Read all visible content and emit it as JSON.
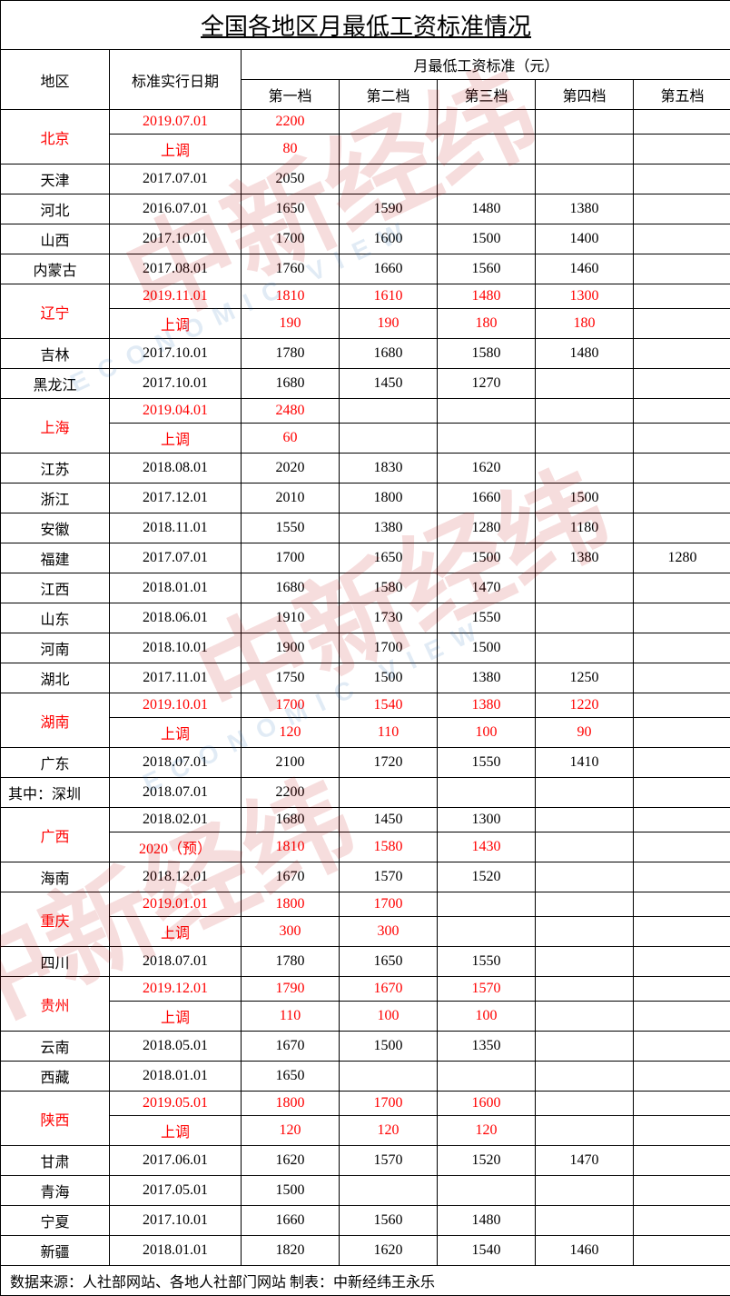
{
  "title": "全国各地区月最低工资标准情况",
  "headers": {
    "region": "地区",
    "date": "标准实行日期",
    "group": "月最低工资标准（元）",
    "tiers": [
      "第一档",
      "第二档",
      "第三档",
      "第四档",
      "第五档"
    ]
  },
  "footer": "数据来源：人社部网站、各地人社部门网站 制表：中新经纬王永乐",
  "colors": {
    "highlight": "#ff0000",
    "border": "#000000",
    "text": "#000000"
  },
  "rows": [
    {
      "region": "北京",
      "rowspan": 2,
      "red": true,
      "lines": [
        {
          "date": "2019.07.01",
          "tiers": [
            "2200",
            "",
            "",
            "",
            ""
          ],
          "red": true
        },
        {
          "date": "上调",
          "tiers": [
            "80",
            "",
            "",
            "",
            ""
          ],
          "red": true
        }
      ]
    },
    {
      "region": "天津",
      "lines": [
        {
          "date": "2017.07.01",
          "tiers": [
            "2050",
            "",
            "",
            "",
            ""
          ]
        }
      ]
    },
    {
      "region": "河北",
      "lines": [
        {
          "date": "2016.07.01",
          "tiers": [
            "1650",
            "1590",
            "1480",
            "1380",
            ""
          ]
        }
      ]
    },
    {
      "region": "山西",
      "lines": [
        {
          "date": "2017.10.01",
          "tiers": [
            "1700",
            "1600",
            "1500",
            "1400",
            ""
          ]
        }
      ]
    },
    {
      "region": "内蒙古",
      "lines": [
        {
          "date": "2017.08.01",
          "tiers": [
            "1760",
            "1660",
            "1560",
            "1460",
            ""
          ]
        }
      ]
    },
    {
      "region": "辽宁",
      "rowspan": 2,
      "red": true,
      "lines": [
        {
          "date": "2019.11.01",
          "tiers": [
            "1810",
            "1610",
            "1480",
            "1300",
            ""
          ],
          "red": true
        },
        {
          "date": "上调",
          "tiers": [
            "190",
            "190",
            "180",
            "180",
            ""
          ],
          "red": true
        }
      ]
    },
    {
      "region": "吉林",
      "lines": [
        {
          "date": "2017.10.01",
          "tiers": [
            "1780",
            "1680",
            "1580",
            "1480",
            ""
          ]
        }
      ]
    },
    {
      "region": "黑龙江",
      "lines": [
        {
          "date": "2017.10.01",
          "tiers": [
            "1680",
            "1450",
            "1270",
            "",
            ""
          ]
        }
      ]
    },
    {
      "region": "上海",
      "rowspan": 2,
      "red": true,
      "lines": [
        {
          "date": "2019.04.01",
          "tiers": [
            "2480",
            "",
            "",
            "",
            ""
          ],
          "red": true
        },
        {
          "date": "上调",
          "tiers": [
            "60",
            "",
            "",
            "",
            ""
          ],
          "red": true
        }
      ]
    },
    {
      "region": "江苏",
      "lines": [
        {
          "date": "2018.08.01",
          "tiers": [
            "2020",
            "1830",
            "1620",
            "",
            ""
          ]
        }
      ]
    },
    {
      "region": "浙江",
      "lines": [
        {
          "date": "2017.12.01",
          "tiers": [
            "2010",
            "1800",
            "1660",
            "1500",
            ""
          ]
        }
      ]
    },
    {
      "region": "安徽",
      "lines": [
        {
          "date": "2018.11.01",
          "tiers": [
            "1550",
            "1380",
            "1280",
            "1180",
            ""
          ]
        }
      ]
    },
    {
      "region": "福建",
      "lines": [
        {
          "date": "2017.07.01",
          "tiers": [
            "1700",
            "1650",
            "1500",
            "1380",
            "1280"
          ]
        }
      ]
    },
    {
      "region": "江西",
      "lines": [
        {
          "date": "2018.01.01",
          "tiers": [
            "1680",
            "1580",
            "1470",
            "",
            ""
          ]
        }
      ]
    },
    {
      "region": "山东",
      "lines": [
        {
          "date": "2018.06.01",
          "tiers": [
            "1910",
            "1730",
            "1550",
            "",
            ""
          ]
        }
      ]
    },
    {
      "region": "河南",
      "lines": [
        {
          "date": "2018.10.01",
          "tiers": [
            "1900",
            "1700",
            "1500",
            "",
            ""
          ]
        }
      ]
    },
    {
      "region": "湖北",
      "lines": [
        {
          "date": "2017.11.01",
          "tiers": [
            "1750",
            "1500",
            "1380",
            "1250",
            ""
          ]
        }
      ]
    },
    {
      "region": "湖南",
      "rowspan": 2,
      "red": true,
      "lines": [
        {
          "date": "2019.10.01",
          "tiers": [
            "1700",
            "1540",
            "1380",
            "1220",
            ""
          ],
          "red": true
        },
        {
          "date": "上调",
          "tiers": [
            "120",
            "110",
            "100",
            "90",
            ""
          ],
          "red": true
        }
      ]
    },
    {
      "region": "广东",
      "lines": [
        {
          "date": "2018.07.01",
          "tiers": [
            "2100",
            "1720",
            "1550",
            "1410",
            ""
          ]
        }
      ]
    },
    {
      "region": "其中：深圳",
      "align": "left",
      "lines": [
        {
          "date": "2018.07.01",
          "tiers": [
            "2200",
            "",
            "",
            "",
            ""
          ]
        }
      ]
    },
    {
      "region": "广西",
      "rowspan": 2,
      "red": true,
      "lines": [
        {
          "date": "2018.02.01",
          "tiers": [
            "1680",
            "1450",
            "1300",
            "",
            ""
          ],
          "red": false
        },
        {
          "date": "2020（预）",
          "tiers": [
            "1810",
            "1580",
            "1430",
            "",
            ""
          ],
          "red": true
        }
      ]
    },
    {
      "region": "海南",
      "lines": [
        {
          "date": "2018.12.01",
          "tiers": [
            "1670",
            "1570",
            "1520",
            "",
            ""
          ]
        }
      ]
    },
    {
      "region": "重庆",
      "rowspan": 2,
      "red": true,
      "lines": [
        {
          "date": "2019.01.01",
          "tiers": [
            "1800",
            "1700",
            "",
            "",
            ""
          ],
          "red": true
        },
        {
          "date": "上调",
          "tiers": [
            "300",
            "300",
            "",
            "",
            ""
          ],
          "red": true
        }
      ]
    },
    {
      "region": "四川",
      "lines": [
        {
          "date": "2018.07.01",
          "tiers": [
            "1780",
            "1650",
            "1550",
            "",
            ""
          ]
        }
      ]
    },
    {
      "region": "贵州",
      "rowspan": 2,
      "red": true,
      "lines": [
        {
          "date": "2019.12.01",
          "tiers": [
            "1790",
            "1670",
            "1570",
            "",
            ""
          ],
          "red": true
        },
        {
          "date": "上调",
          "tiers": [
            "110",
            "100",
            "100",
            "",
            ""
          ],
          "red": true
        }
      ]
    },
    {
      "region": "云南",
      "lines": [
        {
          "date": "2018.05.01",
          "tiers": [
            "1670",
            "1500",
            "1350",
            "",
            ""
          ]
        }
      ]
    },
    {
      "region": "西藏",
      "lines": [
        {
          "date": "2018.01.01",
          "tiers": [
            "1650",
            "",
            "",
            "",
            ""
          ]
        }
      ]
    },
    {
      "region": "陕西",
      "rowspan": 2,
      "red": true,
      "lines": [
        {
          "date": "2019.05.01",
          "tiers": [
            "1800",
            "1700",
            "1600",
            "",
            ""
          ],
          "red": true
        },
        {
          "date": "上调",
          "tiers": [
            "120",
            "120",
            "120",
            "",
            ""
          ],
          "red": true
        }
      ]
    },
    {
      "region": "甘肃",
      "lines": [
        {
          "date": "2017.06.01",
          "tiers": [
            "1620",
            "1570",
            "1520",
            "1470",
            ""
          ]
        }
      ]
    },
    {
      "region": "青海",
      "lines": [
        {
          "date": "2017.05.01",
          "tiers": [
            "1500",
            "",
            "",
            "",
            ""
          ]
        }
      ]
    },
    {
      "region": "宁夏",
      "lines": [
        {
          "date": "2017.10.01",
          "tiers": [
            "1660",
            "1560",
            "1480",
            "",
            ""
          ]
        }
      ]
    },
    {
      "region": "新疆",
      "lines": [
        {
          "date": "2018.01.01",
          "tiers": [
            "1820",
            "1620",
            "1540",
            "1460",
            ""
          ]
        }
      ]
    }
  ],
  "watermark": {
    "cn": "中新经纬",
    "en": "ECONOMIC VIEW"
  }
}
